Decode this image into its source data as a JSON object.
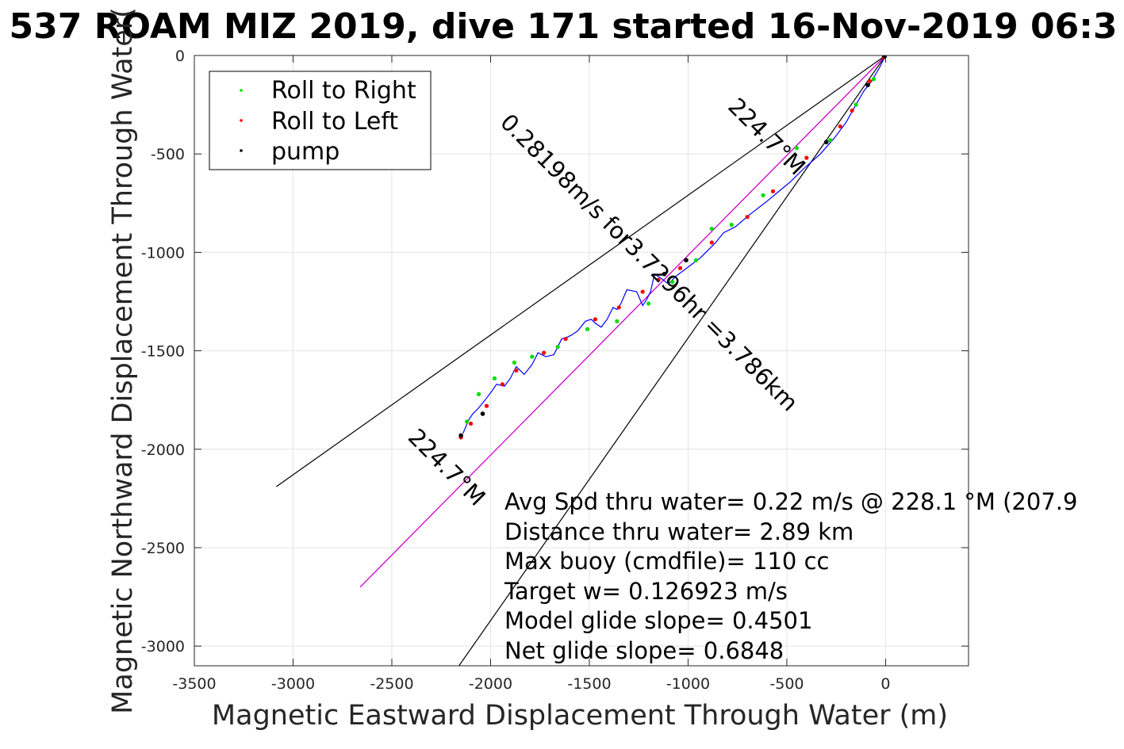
{
  "chart_data": {
    "type": "line",
    "title": "537 ROAM MIZ 2019, dive 171 started 16-Nov-2019 06:3",
    "xlabel": "Magnetic Eastward Displacement Through Water (m)",
    "ylabel": "Magnetic Northward Displacement Through Water(",
    "xlim": [
      -3500,
      420
    ],
    "ylim": [
      -3100,
      0
    ],
    "xticks": [
      -3500,
      -3000,
      -2500,
      -2000,
      -1500,
      -1000,
      -500,
      0
    ],
    "xtick_labels": [
      "-3500",
      "-3000",
      "-2500",
      "-2000",
      "-1500",
      "-1000",
      "-500",
      "0"
    ],
    "yticks": [
      0,
      -500,
      -1000,
      -1500,
      -2000,
      -2500,
      -3000
    ],
    "ytick_labels": [
      "0",
      "-500",
      "-1000",
      "-1500",
      "-2000",
      "-2500",
      "-3000"
    ],
    "grid": true,
    "legend_position": "top-left",
    "legend": [
      {
        "label": "Roll to Right",
        "color": "#00dd00"
      },
      {
        "label": "Roll to Left",
        "color": "#ff0000"
      },
      {
        "label": "pump",
        "color": "#000000"
      }
    ],
    "colors": {
      "track": "#0000ff",
      "heading_line": "#cc00cc",
      "cone_line": "#000000"
    },
    "cone_lines": [
      {
        "x": [
          0,
          -3085
        ],
        "y": [
          0,
          -2190
        ]
      },
      {
        "x": [
          0,
          -2160
        ],
        "y": [
          0,
          -3100
        ]
      }
    ],
    "heading_line": {
      "x": [
        0,
        -2660
      ],
      "y": [
        0,
        -2700
      ]
    },
    "track": {
      "x": [
        0,
        -30,
        -70,
        -110,
        -150,
        -200,
        -260,
        -330,
        -420,
        -480,
        -540,
        -600,
        -690,
        -760,
        -820,
        -860,
        -900,
        -940,
        -980,
        -1020,
        -1060,
        -1100,
        -1140,
        -1170,
        -1190,
        -1210,
        -1230,
        -1260,
        -1310,
        -1340,
        -1360,
        -1380,
        -1410,
        -1440,
        -1470,
        -1490,
        -1520,
        -1560,
        -1590,
        -1610,
        -1640,
        -1680,
        -1720,
        -1740,
        -1760,
        -1790,
        -1830,
        -1850,
        -1870,
        -1900,
        -1930,
        -1970,
        -1990,
        -2020,
        -2060,
        -2090,
        -2110,
        -2140
      ],
      "y": [
        0,
        -60,
        -130,
        -180,
        -250,
        -340,
        -420,
        -500,
        -580,
        -640,
        -690,
        -740,
        -810,
        -870,
        -900,
        -950,
        -990,
        -1030,
        -1060,
        -1090,
        -1120,
        -1160,
        -1130,
        -1110,
        -1200,
        -1240,
        -1270,
        -1200,
        -1190,
        -1260,
        -1290,
        -1280,
        -1340,
        -1380,
        -1360,
        -1340,
        -1350,
        -1400,
        -1420,
        -1430,
        -1440,
        -1520,
        -1530,
        -1520,
        -1510,
        -1570,
        -1620,
        -1600,
        -1580,
        -1640,
        -1680,
        -1670,
        -1700,
        -1740,
        -1790,
        -1820,
        -1850,
        -1920
      ]
    },
    "roll_right": {
      "x": [
        -60,
        -150,
        -280,
        -450,
        -620,
        -780,
        -880,
        -960,
        -1080,
        -1200,
        -1360,
        -1510,
        -1660,
        -1790,
        -1880,
        -1980,
        -2060,
        -2120
      ],
      "y": [
        -120,
        -250,
        -430,
        -470,
        -710,
        -860,
        -880,
        -1040,
        -1150,
        -1260,
        -1350,
        -1390,
        -1480,
        -1530,
        -1560,
        -1640,
        -1720,
        -1860
      ]
    },
    "roll_left": {
      "x": [
        -10,
        -80,
        -170,
        -230,
        -400,
        -570,
        -700,
        -880,
        -1040,
        -1150,
        -1230,
        -1350,
        -1470,
        -1620,
        -1730,
        -1870,
        -1940,
        -2020,
        -2100,
        -2150
      ],
      "y": [
        -10,
        -130,
        -280,
        -360,
        -520,
        -690,
        -820,
        -950,
        -1080,
        -1140,
        -1200,
        -1280,
        -1340,
        -1440,
        -1510,
        -1600,
        -1670,
        -1780,
        -1870,
        -1940
      ]
    },
    "pumps": {
      "x": [
        -5,
        -90,
        -300,
        -1010,
        -1120,
        -2040,
        -2150
      ],
      "y": [
        -5,
        -150,
        -440,
        -1040,
        -1110,
        -1820,
        -1930
      ]
    },
    "line_annotations": [
      {
        "text": "224.7°M",
        "x": -630,
        "y": -440,
        "angle_deg": 225
      },
      {
        "text": "0.28198m/s for3.7296hr =3.786km",
        "x": -1225,
        "y": -1080,
        "angle_deg": 225
      },
      {
        "text": "224.7°M",
        "x": -2250,
        "y": -2120,
        "angle_deg": 225
      }
    ],
    "stats": [
      "Avg Spd thru water=  0.22 m/s @ 228.1 °M (207.9",
      "Distance thru water=  2.89 km",
      "Max buoy (cmdfile)= 110 cc",
      "Target w= 0.126923 m/s",
      "Model glide slope= 0.4501",
      "Net glide slope= 0.6848"
    ]
  }
}
